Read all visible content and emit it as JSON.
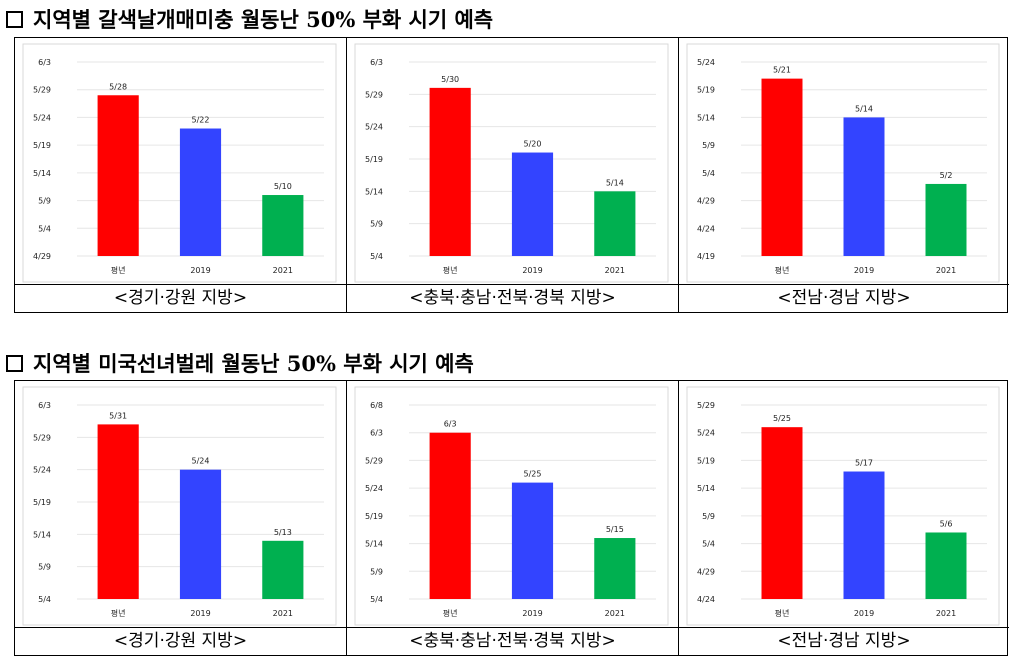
{
  "sections": [
    {
      "title": "지역별 갈색날개매미충 월동난 50% 부화 시기 예측",
      "charts": [
        {
          "caption": "<경기·강원 지방>",
          "chart_data": {
            "type": "bar",
            "categories": [
              "평년",
              "2019",
              "2021"
            ],
            "values": [
              "5/28",
              "5/22",
              "5/10"
            ],
            "value_day_of_year": [
              148,
              142,
              130
            ],
            "colors": [
              "#ff0000",
              "#3344ff",
              "#00b050"
            ],
            "yticks": [
              "4/29",
              "5/4",
              "5/9",
              "5/14",
              "5/19",
              "5/24",
              "5/29",
              "6/3"
            ],
            "ylim": [
              "4/29",
              "6/3"
            ],
            "grid": true
          }
        },
        {
          "caption": "<충북·충남·전북·경북 지방>",
          "chart_data": {
            "type": "bar",
            "categories": [
              "평년",
              "2019",
              "2021"
            ],
            "values": [
              "5/30",
              "5/20",
              "5/14"
            ],
            "value_day_of_year": [
              150,
              140,
              134
            ],
            "colors": [
              "#ff0000",
              "#3344ff",
              "#00b050"
            ],
            "yticks": [
              "5/4",
              "5/9",
              "5/14",
              "5/19",
              "5/24",
              "5/29",
              "6/3"
            ],
            "ylim": [
              "5/4",
              "6/3"
            ],
            "grid": true
          }
        },
        {
          "caption": "<전남·경남 지방>",
          "chart_data": {
            "type": "bar",
            "categories": [
              "평년",
              "2019",
              "2021"
            ],
            "values": [
              "5/21",
              "5/14",
              "5/2"
            ],
            "value_day_of_year": [
              141,
              134,
              122
            ],
            "colors": [
              "#ff0000",
              "#3344ff",
              "#00b050"
            ],
            "yticks": [
              "4/19",
              "4/24",
              "4/29",
              "5/4",
              "5/9",
              "5/14",
              "5/19",
              "5/24"
            ],
            "ylim": [
              "4/19",
              "5/24"
            ],
            "grid": true
          }
        }
      ]
    },
    {
      "title": "지역별 미국선녀벌레 월동난 50% 부화 시기 예측",
      "charts": [
        {
          "caption": "<경기·강원 지방>",
          "chart_data": {
            "type": "bar",
            "categories": [
              "평년",
              "2019",
              "2021"
            ],
            "values": [
              "5/31",
              "5/24",
              "5/13"
            ],
            "value_day_of_year": [
              151,
              144,
              133
            ],
            "colors": [
              "#ff0000",
              "#3344ff",
              "#00b050"
            ],
            "yticks": [
              "5/4",
              "5/9",
              "5/14",
              "5/19",
              "5/24",
              "5/29",
              "6/3"
            ],
            "ylim": [
              "5/4",
              "6/3"
            ],
            "grid": true
          }
        },
        {
          "caption": "<충북·충남·전북·경북 지방>",
          "chart_data": {
            "type": "bar",
            "categories": [
              "평년",
              "2019",
              "2021"
            ],
            "values": [
              "6/3",
              "5/25",
              "5/15"
            ],
            "value_day_of_year": [
              154,
              145,
              135
            ],
            "colors": [
              "#ff0000",
              "#3344ff",
              "#00b050"
            ],
            "yticks": [
              "5/4",
              "5/9",
              "5/14",
              "5/19",
              "5/24",
              "5/29",
              "6/3",
              "6/8"
            ],
            "ylim": [
              "5/4",
              "6/8"
            ],
            "grid": true
          }
        },
        {
          "caption": "<전남·경남 지방>",
          "chart_data": {
            "type": "bar",
            "categories": [
              "평년",
              "2019",
              "2021"
            ],
            "values": [
              "5/25",
              "5/17",
              "5/6"
            ],
            "value_day_of_year": [
              145,
              137,
              126
            ],
            "colors": [
              "#ff0000",
              "#3344ff",
              "#00b050"
            ],
            "yticks": [
              "4/24",
              "4/29",
              "5/4",
              "5/9",
              "5/14",
              "5/19",
              "5/24",
              "5/29"
            ],
            "ylim": [
              "4/24",
              "5/29"
            ],
            "grid": true
          }
        }
      ]
    }
  ]
}
